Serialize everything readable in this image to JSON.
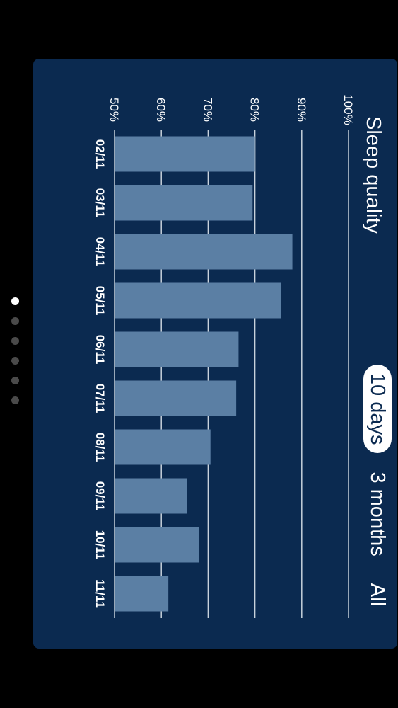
{
  "title": "Sleep quality",
  "range_options": [
    "10 days",
    "3 months",
    "All"
  ],
  "selected_range": "10 days",
  "colors": {
    "bar": "#5b7fa4",
    "background": "#0b2a50",
    "grid": "#c8d2dc",
    "text": "#ffffff"
  },
  "page_indicator": {
    "count": 6,
    "active": 0
  },
  "chart_data": {
    "type": "bar",
    "title": "Sleep quality",
    "categories": [
      "02/11",
      "03/11",
      "04/11",
      "05/11",
      "06/11",
      "07/11",
      "08/11",
      "09/11",
      "10/11",
      "11/11"
    ],
    "values": [
      80,
      79.5,
      88,
      85.5,
      76.5,
      76,
      70.5,
      65.5,
      68,
      61.5
    ],
    "yticks": [
      "50%",
      "60%",
      "70%",
      "80%",
      "90%",
      "100%"
    ],
    "ylim": [
      50,
      100
    ],
    "grid": true
  }
}
